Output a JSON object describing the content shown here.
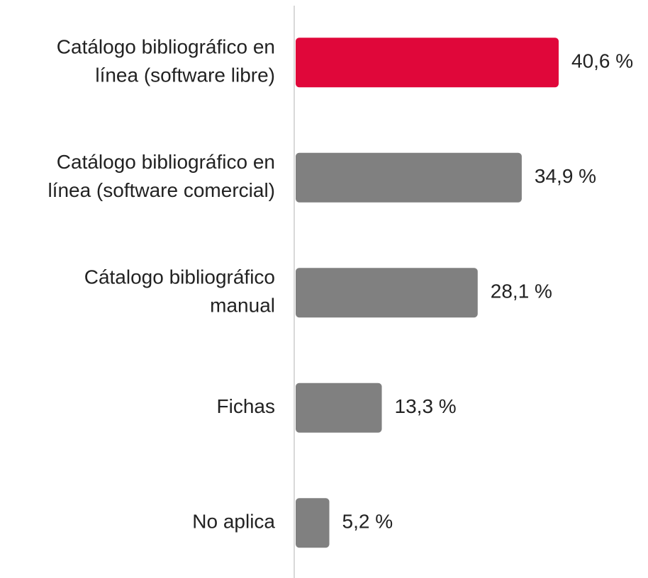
{
  "chart_data": {
    "type": "bar",
    "orientation": "horizontal",
    "categories": [
      [
        "Catálogo bibliográfico en",
        "línea (software libre)"
      ],
      [
        "Catálogo bibliográfico en",
        "línea (software comercial)"
      ],
      [
        "Cátalogo bibliográfico",
        "manual"
      ],
      [
        "Fichas"
      ],
      [
        "No aplica"
      ]
    ],
    "values": [
      40.6,
      34.9,
      28.1,
      13.3,
      5.2
    ],
    "value_labels": [
      "40,6 %",
      "34,9 %",
      "28,1 %",
      "13,3 %",
      "5,2 %"
    ],
    "colors": [
      "#e0073a",
      "#808080",
      "#808080",
      "#808080",
      "#808080"
    ]
  }
}
